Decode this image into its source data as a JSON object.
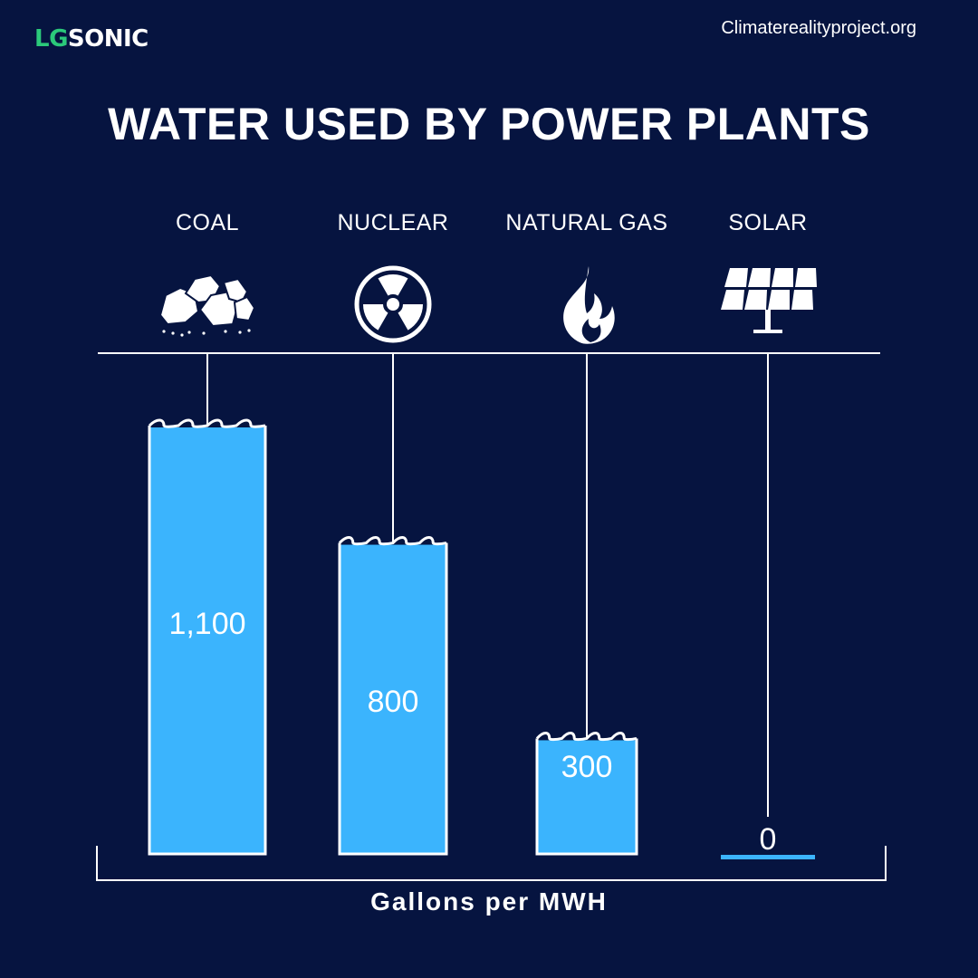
{
  "brand": {
    "logo_lg": "LG",
    "logo_sonic": "SONIC"
  },
  "source": "Climaterealityproject.org",
  "colors": {
    "background": "#061440",
    "water": "#3bb4fd",
    "brand_green": "#2bc97a",
    "line": "#ffffff"
  },
  "chart_data": {
    "type": "bar",
    "title": "WATER USED BY POWER PLANTS",
    "xlabel": "Gallons per MWH",
    "ylabel": "",
    "categories": [
      "COAL",
      "NUCLEAR",
      "NATURAL GAS",
      "SOLAR"
    ],
    "values": [
      1100,
      800,
      300,
      0
    ],
    "value_labels": [
      "1,100",
      "800",
      "300",
      "0"
    ],
    "icons": [
      "coal-icon",
      "radiation-icon",
      "flame-icon",
      "solar-panel-icon"
    ],
    "ylim": [
      0,
      1100
    ],
    "grid": false,
    "legend": "none"
  }
}
